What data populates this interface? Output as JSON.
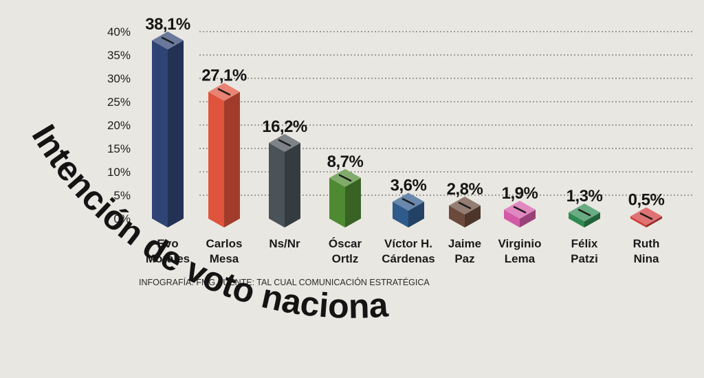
{
  "chart_data": {
    "type": "bar",
    "title": "Intención de voto nacional",
    "categories": [
      [
        "Evo",
        "Morales"
      ],
      [
        "Carlos",
        "Mesa"
      ],
      [
        "Ns/Nr"
      ],
      [
        "Óscar",
        "Ortlz"
      ],
      [
        "Víctor H.",
        "Cárdenas"
      ],
      [
        "Jaime",
        "Paz"
      ],
      [
        "Virginio",
        "Lema"
      ],
      [
        "Félix",
        "Patzi"
      ],
      [
        "Ruth",
        "Nina"
      ]
    ],
    "values": [
      38.1,
      27.1,
      16.2,
      8.7,
      3.6,
      2.8,
      1.9,
      1.3,
      0.5
    ],
    "data_labels": [
      "38,1%",
      "27,1%",
      "16,2%",
      "8,7%",
      "3,6%",
      "2,8%",
      "1,9%",
      "1,3%",
      "0,5%"
    ],
    "colors": [
      "#2f4474",
      "#e0533c",
      "#4a5358",
      "#4e8a32",
      "#2f5a8c",
      "#6b4a3c",
      "#d45aa8",
      "#2f8a52",
      "#d23d3d"
    ],
    "y_ticks": [
      0,
      5,
      10,
      15,
      20,
      25,
      30,
      35,
      40
    ],
    "y_tick_labels": [
      "0%",
      "5%",
      "10%",
      "15%",
      "20%",
      "25%",
      "30%",
      "35%",
      "40%"
    ],
    "ylim": [
      0,
      40
    ],
    "grid": true,
    "source": "INFOGRAFÍA: FMG.FUENTE: TAL CUAL COMUNICACIÓN ESTRATÉGICA"
  }
}
